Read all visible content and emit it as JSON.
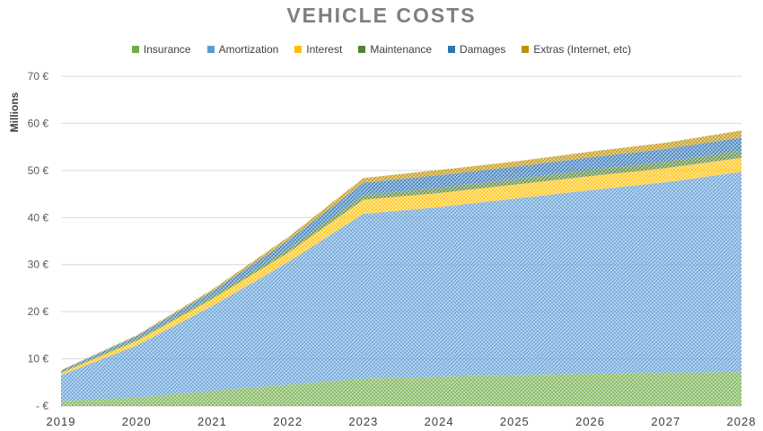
{
  "chart_data": {
    "type": "area",
    "stacked": true,
    "title": "VEHICLE COSTS",
    "ylabel": "Millions",
    "xlabel": "",
    "x": [
      "2019",
      "2020",
      "2021",
      "2022",
      "2023",
      "2024",
      "2025",
      "2026",
      "2027",
      "2028"
    ],
    "ylim": [
      0,
      70
    ],
    "yticks": [
      0,
      10,
      20,
      30,
      40,
      50,
      60,
      70
    ],
    "ytick_labels": [
      "- €",
      "10 €",
      "20 €",
      "30 €",
      "40 €",
      "50 €",
      "60 €",
      "70 €"
    ],
    "grid": true,
    "legend_position": "top",
    "series": [
      {
        "name": "Insurance",
        "color": "#70ad47",
        "values": [
          1.0,
          1.8,
          3.2,
          4.5,
          5.8,
          6.2,
          6.5,
          6.8,
          7.0,
          7.2
        ]
      },
      {
        "name": "Amortization",
        "color": "#5b9bd5",
        "values": [
          5.5,
          11.0,
          18.0,
          26.0,
          35.0,
          36.0,
          37.5,
          39.0,
          40.5,
          42.5
        ]
      },
      {
        "name": "Interest",
        "color": "#ffc000",
        "values": [
          0.5,
          1.0,
          1.5,
          2.0,
          3.0,
          3.0,
          3.0,
          3.0,
          3.0,
          3.0
        ]
      },
      {
        "name": "Maintenance",
        "color": "#548235",
        "values": [
          0.2,
          0.4,
          0.6,
          0.8,
          1.0,
          1.1,
          1.2,
          1.3,
          1.4,
          1.5
        ]
      },
      {
        "name": "Damages",
        "color": "#2e75b6",
        "values": [
          0.3,
          0.6,
          1.0,
          1.8,
          2.6,
          2.7,
          2.6,
          2.7,
          2.7,
          2.8
        ]
      },
      {
        "name": "Extras (Internet, etc)",
        "color": "#bf9000",
        "values": [
          0.1,
          0.2,
          0.4,
          0.7,
          1.0,
          1.1,
          1.1,
          1.2,
          1.3,
          1.5
        ]
      }
    ]
  }
}
